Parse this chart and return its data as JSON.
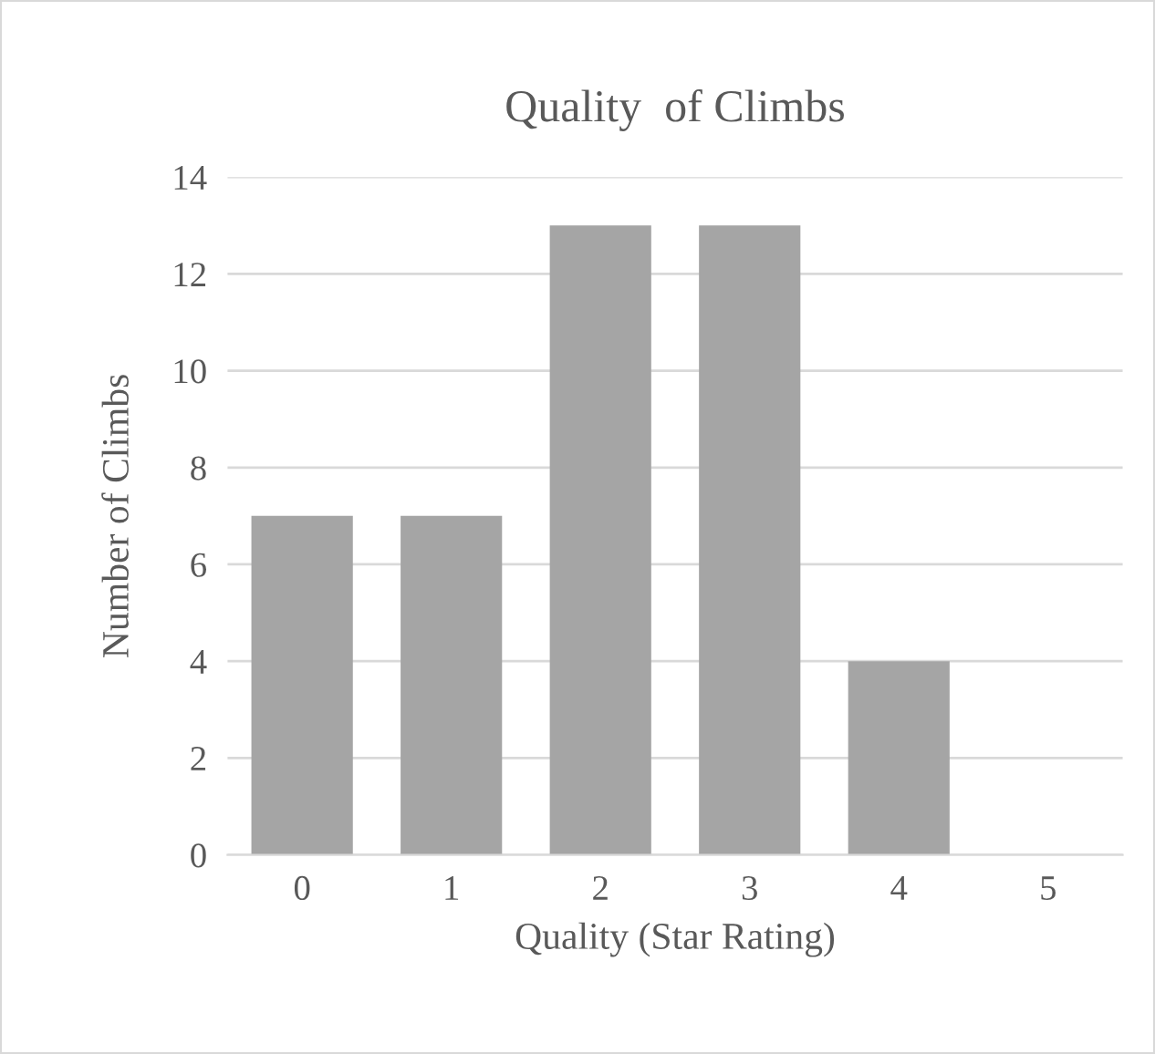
{
  "chart_data": {
    "type": "bar",
    "title": "Quality  of Climbs",
    "xlabel": "Quality (Star Rating)",
    "ylabel": "Number of Climbs",
    "categories": [
      "0",
      "1",
      "2",
      "3",
      "4",
      "5"
    ],
    "values": [
      7,
      7,
      13,
      13,
      4,
      0
    ],
    "color": "#a5a5a5",
    "ylim": [
      0,
      14
    ],
    "yticks": [
      0,
      2,
      4,
      6,
      8,
      10,
      12,
      14
    ],
    "grid": "y",
    "legend": false
  }
}
